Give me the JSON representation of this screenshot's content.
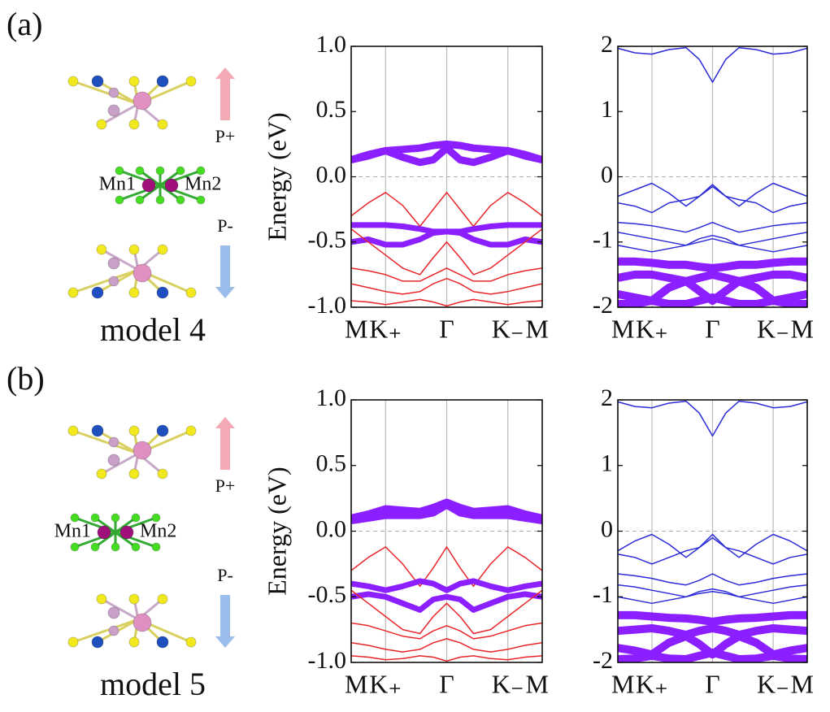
{
  "figure": {
    "panels": [
      {
        "label": "(a)",
        "model": "model 4",
        "up": "P+",
        "down": "P-",
        "atom_left": "Mn1",
        "atom_right": "Mn2"
      },
      {
        "label": "(b)",
        "model": "model 5",
        "up": "P+",
        "down": "P-",
        "atom_left": "Mn1",
        "atom_right": "Mn2"
      }
    ]
  },
  "chart_data": [
    {
      "type": "line",
      "ylabel": "Energy (eV)",
      "x": [
        0,
        0.09,
        0.18,
        0.27,
        0.36,
        0.43,
        0.5,
        0.57,
        0.64,
        0.73,
        0.82,
        0.91,
        1
      ],
      "xlim": [
        0,
        1
      ],
      "xticks": [
        {
          "value": 0,
          "label": "M"
        },
        {
          "value": 0.18,
          "label": "K₊"
        },
        {
          "value": 0.5,
          "label": "Γ"
        },
        {
          "value": 0.82,
          "label": "K₋"
        },
        {
          "value": 1,
          "label": "M"
        }
      ],
      "ylim": [
        -1,
        1
      ],
      "yticks": [
        {
          "value": 1,
          "label": "1.0"
        },
        0.5,
        {
          "value": 0,
          "label": "0.0"
        },
        -0.5,
        {
          "value": -1,
          "label": "-1.0"
        }
      ],
      "grid": true,
      "reference_line": 0,
      "series": [
        {
          "color": "#8b1fff",
          "linewidth": 9,
          "values": [
            0.13,
            0.16,
            0.2,
            0.21,
            0.22,
            0.24,
            0.25,
            0.24,
            0.22,
            0.21,
            0.2,
            0.16,
            0.13
          ]
        },
        {
          "color": "#8b1fff",
          "linewidth": 9,
          "values": [
            0.13,
            0.17,
            0.2,
            0.15,
            0.11,
            0.13,
            0.22,
            0.13,
            0.11,
            0.15,
            0.2,
            0.17,
            0.13
          ]
        },
        {
          "color": "#e8262a",
          "linewidth": 1.5,
          "values": [
            -0.3,
            -0.2,
            -0.12,
            -0.22,
            -0.38,
            -0.25,
            -0.12,
            -0.25,
            -0.38,
            -0.22,
            -0.12,
            -0.2,
            -0.3
          ]
        },
        {
          "color": "#8b1fff",
          "linewidth": 7,
          "values": [
            -0.37,
            -0.37,
            -0.37,
            -0.38,
            -0.4,
            -0.42,
            -0.42,
            -0.42,
            -0.4,
            -0.38,
            -0.37,
            -0.37,
            -0.37
          ]
        },
        {
          "color": "#8b1fff",
          "linewidth": 7,
          "values": [
            -0.5,
            -0.48,
            -0.52,
            -0.52,
            -0.48,
            -0.43,
            -0.42,
            -0.43,
            -0.48,
            -0.52,
            -0.52,
            -0.48,
            -0.5
          ]
        },
        {
          "color": "#e8262a",
          "linewidth": 1.5,
          "values": [
            -0.4,
            -0.5,
            -0.6,
            -0.7,
            -0.75,
            -0.62,
            -0.5,
            -0.62,
            -0.75,
            -0.7,
            -0.6,
            -0.5,
            -0.4
          ]
        },
        {
          "color": "#e8262a",
          "linewidth": 1.5,
          "values": [
            -0.7,
            -0.72,
            -0.75,
            -0.8,
            -0.8,
            -0.75,
            -0.7,
            -0.75,
            -0.8,
            -0.8,
            -0.75,
            -0.72,
            -0.7
          ]
        },
        {
          "color": "#e8262a",
          "linewidth": 1.5,
          "values": [
            -0.82,
            -0.85,
            -0.88,
            -0.9,
            -0.88,
            -0.82,
            -0.78,
            -0.82,
            -0.88,
            -0.9,
            -0.88,
            -0.85,
            -0.82
          ]
        },
        {
          "color": "#e8262a",
          "linewidth": 1.5,
          "values": [
            -0.95,
            -0.96,
            -0.98,
            -0.96,
            -0.94,
            -0.96,
            -0.99,
            -0.96,
            -0.94,
            -0.96,
            -0.98,
            -0.96,
            -0.95
          ]
        }
      ]
    },
    {
      "type": "line",
      "x": [
        0,
        0.09,
        0.18,
        0.27,
        0.36,
        0.43,
        0.5,
        0.57,
        0.64,
        0.73,
        0.82,
        0.91,
        1
      ],
      "xlim": [
        0,
        1
      ],
      "xticks": [
        {
          "value": 0,
          "label": "M"
        },
        {
          "value": 0.18,
          "label": "K₊"
        },
        {
          "value": 0.5,
          "label": "Γ"
        },
        {
          "value": 0.82,
          "label": "K₋"
        },
        {
          "value": 1,
          "label": "M"
        }
      ],
      "ylim": [
        -2,
        2
      ],
      "yticks": [
        2,
        1,
        0,
        -1,
        -2
      ],
      "grid": true,
      "reference_line": 0,
      "series": [
        {
          "color": "#2b2bd8",
          "linewidth": 1.5,
          "values": [
            1.97,
            1.9,
            1.88,
            1.95,
            1.98,
            1.8,
            1.45,
            1.8,
            1.98,
            1.95,
            1.88,
            1.9,
            1.97
          ]
        },
        {
          "color": "#2b2bd8",
          "linewidth": 1.5,
          "values": [
            -0.3,
            -0.2,
            -0.1,
            -0.25,
            -0.45,
            -0.3,
            -0.12,
            -0.3,
            -0.45,
            -0.25,
            -0.1,
            -0.2,
            -0.3
          ]
        },
        {
          "color": "#2b2bd8",
          "linewidth": 1.5,
          "values": [
            -0.4,
            -0.45,
            -0.55,
            -0.4,
            -0.35,
            -0.3,
            -0.15,
            -0.3,
            -0.35,
            -0.4,
            -0.55,
            -0.45,
            -0.4
          ]
        },
        {
          "color": "#2b2bd8",
          "linewidth": 1.5,
          "values": [
            -0.7,
            -0.72,
            -0.75,
            -0.8,
            -0.85,
            -0.78,
            -0.7,
            -0.78,
            -0.85,
            -0.8,
            -0.75,
            -0.72,
            -0.7
          ]
        },
        {
          "color": "#2b2bd8",
          "linewidth": 1.5,
          "values": [
            -0.85,
            -0.9,
            -0.95,
            -1,
            -1.05,
            -0.95,
            -0.9,
            -0.95,
            -1.05,
            -1,
            -0.95,
            -0.9,
            -0.85
          ]
        },
        {
          "color": "#2b2bd8",
          "linewidth": 1.5,
          "values": [
            -1.05,
            -1.1,
            -1.15,
            -1.1,
            -1.05,
            -1,
            -0.95,
            -1,
            -1.05,
            -1.1,
            -1.15,
            -1.1,
            -1.05
          ]
        },
        {
          "color": "#8b1fff",
          "linewidth": 10,
          "values": [
            -1.3,
            -1.3,
            -1.32,
            -1.35,
            -1.35,
            -1.38,
            -1.4,
            -1.38,
            -1.35,
            -1.35,
            -1.32,
            -1.3,
            -1.3
          ]
        },
        {
          "color": "#8b1fff",
          "linewidth": 10,
          "values": [
            -1.55,
            -1.5,
            -1.5,
            -1.55,
            -1.6,
            -1.55,
            -1.5,
            -1.55,
            -1.6,
            -1.55,
            -1.5,
            -1.5,
            -1.55
          ]
        },
        {
          "color": "#8b1fff",
          "linewidth": 10,
          "values": [
            -1.8,
            -1.85,
            -1.9,
            -1.7,
            -1.6,
            -1.75,
            -1.9,
            -1.75,
            -1.6,
            -1.7,
            -1.9,
            -1.85,
            -1.8
          ]
        },
        {
          "color": "#8b1fff",
          "linewidth": 10,
          "values": [
            -1.95,
            -1.95,
            -1.9,
            -1.95,
            -1.95,
            -1.9,
            -1.85,
            -1.9,
            -1.95,
            -1.95,
            -1.9,
            -1.95,
            -1.95
          ]
        }
      ]
    },
    {
      "type": "line",
      "ylabel": "Energy (eV)",
      "x": [
        0,
        0.09,
        0.18,
        0.27,
        0.36,
        0.43,
        0.5,
        0.57,
        0.64,
        0.73,
        0.82,
        0.91,
        1
      ],
      "xlim": [
        0,
        1
      ],
      "xticks": [
        {
          "value": 0,
          "label": "M"
        },
        {
          "value": 0.18,
          "label": "K₊"
        },
        {
          "value": 0.5,
          "label": "Γ"
        },
        {
          "value": 0.82,
          "label": "K₋"
        },
        {
          "value": 1,
          "label": "M"
        }
      ],
      "ylim": [
        -1,
        1
      ],
      "yticks": [
        {
          "value": 1,
          "label": "1.0"
        },
        0.5,
        {
          "value": 0,
          "label": "0.0"
        },
        -0.5,
        {
          "value": -1,
          "label": "-1.0"
        }
      ],
      "grid": true,
      "reference_line": 0,
      "series": [
        {
          "color": "#8b1fff",
          "linewidth": 9,
          "values": [
            0.1,
            0.13,
            0.17,
            0.16,
            0.15,
            0.18,
            0.22,
            0.18,
            0.15,
            0.16,
            0.17,
            0.13,
            0.1
          ]
        },
        {
          "color": "#8b1fff",
          "linewidth": 9,
          "values": [
            0.08,
            0.1,
            0.12,
            0.12,
            0.12,
            0.14,
            0.2,
            0.14,
            0.12,
            0.12,
            0.12,
            0.1,
            0.08
          ]
        },
        {
          "color": "#e8262a",
          "linewidth": 1.5,
          "values": [
            -0.3,
            -0.2,
            -0.12,
            -0.25,
            -0.42,
            -0.28,
            -0.12,
            -0.28,
            -0.42,
            -0.25,
            -0.12,
            -0.2,
            -0.3
          ]
        },
        {
          "color": "#8b1fff",
          "linewidth": 7,
          "values": [
            -0.4,
            -0.42,
            -0.45,
            -0.42,
            -0.38,
            -0.4,
            -0.45,
            -0.4,
            -0.38,
            -0.42,
            -0.45,
            -0.42,
            -0.4
          ]
        },
        {
          "color": "#8b1fff",
          "linewidth": 7,
          "values": [
            -0.5,
            -0.48,
            -0.5,
            -0.55,
            -0.6,
            -0.52,
            -0.5,
            -0.52,
            -0.6,
            -0.55,
            -0.5,
            -0.48,
            -0.5
          ]
        },
        {
          "color": "#e8262a",
          "linewidth": 1.5,
          "values": [
            -0.45,
            -0.55,
            -0.65,
            -0.75,
            -0.78,
            -0.65,
            -0.55,
            -0.65,
            -0.78,
            -0.75,
            -0.65,
            -0.55,
            -0.45
          ]
        },
        {
          "color": "#e8262a",
          "linewidth": 1.5,
          "values": [
            -0.7,
            -0.72,
            -0.76,
            -0.8,
            -0.82,
            -0.76,
            -0.72,
            -0.76,
            -0.82,
            -0.8,
            -0.76,
            -0.72,
            -0.7
          ]
        },
        {
          "color": "#e8262a",
          "linewidth": 1.5,
          "values": [
            -0.85,
            -0.87,
            -0.9,
            -0.92,
            -0.9,
            -0.85,
            -0.82,
            -0.85,
            -0.9,
            -0.92,
            -0.9,
            -0.87,
            -0.85
          ]
        },
        {
          "color": "#e8262a",
          "linewidth": 1.5,
          "values": [
            -0.95,
            -0.96,
            -0.98,
            -0.97,
            -0.95,
            -0.96,
            -0.99,
            -0.96,
            -0.95,
            -0.97,
            -0.98,
            -0.96,
            -0.95
          ]
        }
      ]
    },
    {
      "type": "line",
      "x": [
        0,
        0.09,
        0.18,
        0.27,
        0.36,
        0.43,
        0.5,
        0.57,
        0.64,
        0.73,
        0.82,
        0.91,
        1
      ],
      "xlim": [
        0,
        1
      ],
      "xticks": [
        {
          "value": 0,
          "label": "M"
        },
        {
          "value": 0.18,
          "label": "K₊"
        },
        {
          "value": 0.5,
          "label": "Γ"
        },
        {
          "value": 0.82,
          "label": "K₋"
        },
        {
          "value": 1,
          "label": "M"
        }
      ],
      "ylim": [
        -2,
        2
      ],
      "yticks": [
        2,
        1,
        0,
        -1,
        -2
      ],
      "grid": true,
      "reference_line": 0,
      "series": [
        {
          "color": "#2b2bd8",
          "linewidth": 1.5,
          "values": [
            1.97,
            1.9,
            1.88,
            1.95,
            1.98,
            1.8,
            1.45,
            1.8,
            1.98,
            1.95,
            1.88,
            1.9,
            1.97
          ]
        },
        {
          "color": "#2b2bd8",
          "linewidth": 1.5,
          "values": [
            -0.3,
            -0.15,
            -0.05,
            -0.2,
            -0.4,
            -0.25,
            -0.05,
            -0.25,
            -0.4,
            -0.2,
            -0.05,
            -0.15,
            -0.3
          ]
        },
        {
          "color": "#2b2bd8",
          "linewidth": 1.5,
          "values": [
            -0.35,
            -0.4,
            -0.5,
            -0.4,
            -0.3,
            -0.25,
            -0.1,
            -0.25,
            -0.3,
            -0.4,
            -0.5,
            -0.4,
            -0.35
          ]
        },
        {
          "color": "#2b2bd8",
          "linewidth": 1.5,
          "values": [
            -0.65,
            -0.68,
            -0.72,
            -0.78,
            -0.82,
            -0.75,
            -0.65,
            -0.75,
            -0.82,
            -0.78,
            -0.72,
            -0.68,
            -0.65
          ]
        },
        {
          "color": "#2b2bd8",
          "linewidth": 1.5,
          "values": [
            -0.82,
            -0.85,
            -0.9,
            -0.95,
            -1,
            -0.92,
            -0.88,
            -0.92,
            -1,
            -0.95,
            -0.9,
            -0.85,
            -0.82
          ]
        },
        {
          "color": "#2b2bd8",
          "linewidth": 1.5,
          "values": [
            -1.0,
            -1.05,
            -1.1,
            -1.05,
            -1.0,
            -0.95,
            -0.92,
            -0.95,
            -1.0,
            -1.05,
            -1.1,
            -1.05,
            -1.0
          ]
        },
        {
          "color": "#8b1fff",
          "linewidth": 10,
          "values": [
            -1.28,
            -1.28,
            -1.3,
            -1.32,
            -1.33,
            -1.35,
            -1.38,
            -1.35,
            -1.33,
            -1.32,
            -1.3,
            -1.28,
            -1.28
          ]
        },
        {
          "color": "#8b1fff",
          "linewidth": 10,
          "values": [
            -1.52,
            -1.5,
            -1.48,
            -1.52,
            -1.58,
            -1.52,
            -1.48,
            -1.52,
            -1.58,
            -1.52,
            -1.48,
            -1.5,
            -1.52
          ]
        },
        {
          "color": "#8b1fff",
          "linewidth": 10,
          "values": [
            -1.78,
            -1.82,
            -1.88,
            -1.7,
            -1.6,
            -1.72,
            -1.88,
            -1.72,
            -1.6,
            -1.7,
            -1.88,
            -1.82,
            -1.78
          ]
        },
        {
          "color": "#8b1fff",
          "linewidth": 10,
          "values": [
            -1.95,
            -1.94,
            -1.9,
            -1.94,
            -1.95,
            -1.9,
            -1.85,
            -1.9,
            -1.95,
            -1.94,
            -1.9,
            -1.94,
            -1.95
          ]
        }
      ]
    }
  ]
}
